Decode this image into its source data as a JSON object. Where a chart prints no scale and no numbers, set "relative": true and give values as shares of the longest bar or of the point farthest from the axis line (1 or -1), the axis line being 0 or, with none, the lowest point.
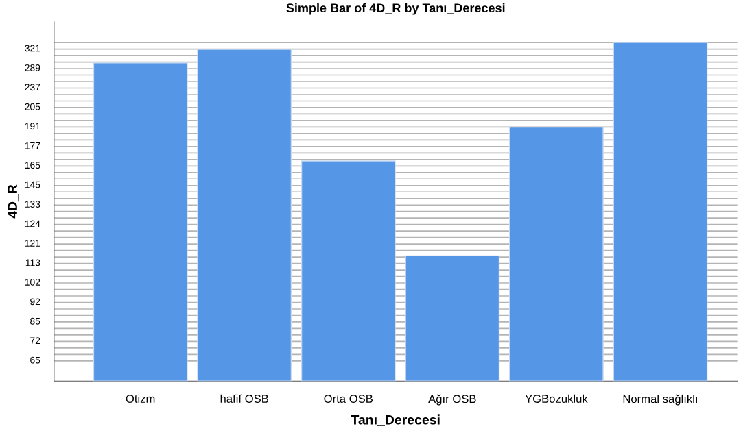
{
  "chart_data": {
    "type": "bar",
    "title": "Simple Bar of 4D_R by Tanı_Derecesi",
    "xlabel": "Tanı_Derecesi",
    "ylabel": "4D_R",
    "categories": [
      "Otizm",
      "hafif OSB",
      "Orta OSB",
      "Ağır OSB",
      "YGBozukluk",
      "Normal sağlıklı"
    ],
    "values": [
      0.94,
      0.98,
      0.65,
      0.37,
      0.75,
      1
    ],
    "color": "#5596e6",
    "relative": true,
    "annotations": [
      "65",
      "72",
      "85",
      "92",
      "102",
      "113",
      "121",
      "124",
      "133",
      "145",
      "165",
      "177",
      "191",
      "205",
      "237",
      "289",
      "321"
    ],
    "grid": "y"
  }
}
